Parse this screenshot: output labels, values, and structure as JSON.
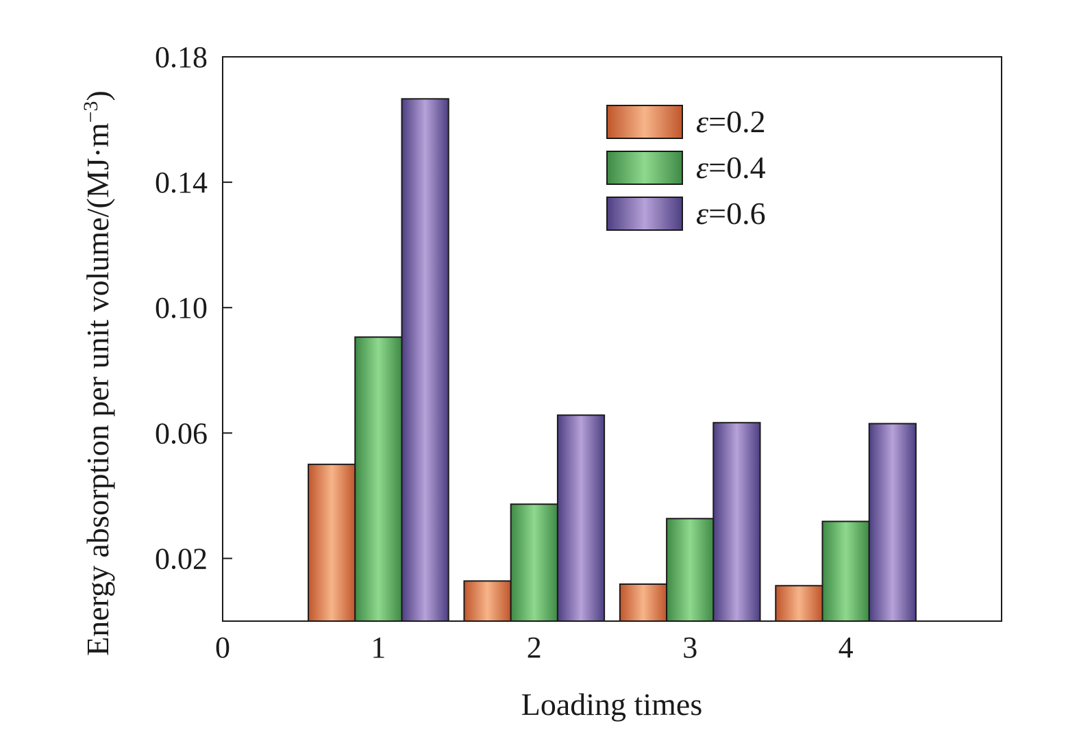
{
  "chart_data": {
    "type": "bar",
    "xlabel": "Loading times",
    "ylabel_main": "Energy absorption per unit volume/(MJ·m",
    "ylabel_sup": "−3",
    "ylabel_close": ")",
    "categories": [
      "1",
      "2",
      "3",
      "4"
    ],
    "x_ticks": [
      "0",
      "1",
      "2",
      "3",
      "4"
    ],
    "xlim": [
      0,
      5
    ],
    "ylim": [
      0,
      0.18
    ],
    "y_ticks": [
      "0.02",
      "0.06",
      "0.10",
      "0.14",
      "0.18"
    ],
    "y_tick_values": [
      0.02,
      0.06,
      0.1,
      0.14,
      0.18
    ],
    "legend_position": "top-right",
    "series": [
      {
        "name": "ε=0.2",
        "name_symbol": "ε",
        "name_value": "=0.2",
        "values": [
          0.05,
          0.0128,
          0.0118,
          0.0113
        ],
        "color_dark": "#c0562c",
        "color_light": "#f7b489"
      },
      {
        "name": "ε=0.4",
        "name_symbol": "ε",
        "name_value": "=0.4",
        "values": [
          0.0906,
          0.0373,
          0.0327,
          0.0318
        ],
        "color_dark": "#3f8a46",
        "color_light": "#8fd98e"
      },
      {
        "name": "ε=0.6",
        "name_symbol": "ε",
        "name_value": "=0.6",
        "values": [
          0.1666,
          0.0657,
          0.0633,
          0.063
        ],
        "color_dark": "#4d3f82",
        "color_light": "#b7a2d9"
      }
    ]
  }
}
